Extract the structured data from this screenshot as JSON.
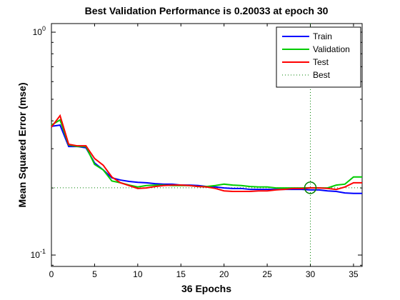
{
  "chart_data": {
    "type": "line",
    "title": "Best Validation Performance is 0.20033 at epoch 30",
    "x_label": "36 Epochs",
    "y_label": "Mean Squared Error  (mse)",
    "y_scale": "log",
    "xlim": [
      0,
      36
    ],
    "xticks": [
      0,
      5,
      10,
      15,
      20,
      25,
      30,
      35
    ],
    "ylim": [
      0.0889,
      1.093
    ],
    "yticks": [
      {
        "value": 0.1,
        "label": "10",
        "exponent": "-1"
      },
      {
        "value": 1,
        "label": "10",
        "exponent": "0"
      }
    ],
    "x": [
      0,
      1,
      2,
      3,
      4,
      5,
      6,
      7,
      8,
      9,
      10,
      11,
      12,
      13,
      14,
      15,
      16,
      17,
      18,
      19,
      20,
      21,
      22,
      23,
      24,
      25,
      26,
      27,
      28,
      29,
      30,
      31,
      32,
      33,
      34,
      35,
      36
    ],
    "series": [
      {
        "name": "Train",
        "color": "#0000ff",
        "values": [
          0.378,
          0.383,
          0.307,
          0.307,
          0.303,
          0.259,
          0.241,
          0.222,
          0.217,
          0.214,
          0.212,
          0.211,
          0.209,
          0.208,
          0.208,
          0.206,
          0.206,
          0.205,
          0.203,
          0.202,
          0.2,
          0.199,
          0.199,
          0.197,
          0.197,
          0.197,
          0.197,
          0.197,
          0.197,
          0.197,
          0.196,
          0.196,
          0.194,
          0.193,
          0.19,
          0.189,
          0.189
        ]
      },
      {
        "name": "Validation",
        "color": "#00cc00",
        "values": [
          0.383,
          0.404,
          0.312,
          0.307,
          0.307,
          0.255,
          0.241,
          0.215,
          0.211,
          0.206,
          0.202,
          0.205,
          0.206,
          0.206,
          0.205,
          0.205,
          0.205,
          0.203,
          0.203,
          0.205,
          0.208,
          0.206,
          0.205,
          0.203,
          0.202,
          0.202,
          0.2,
          0.2,
          0.2,
          0.2,
          0.20033,
          0.2,
          0.2,
          0.206,
          0.208,
          0.224,
          0.224
        ]
      },
      {
        "name": "Test",
        "color": "#ff0000",
        "values": [
          0.375,
          0.422,
          0.314,
          0.309,
          0.309,
          0.271,
          0.253,
          0.224,
          0.211,
          0.205,
          0.199,
          0.2,
          0.203,
          0.205,
          0.206,
          0.206,
          0.205,
          0.203,
          0.202,
          0.199,
          0.194,
          0.193,
          0.193,
          0.193,
          0.194,
          0.194,
          0.196,
          0.197,
          0.199,
          0.199,
          0.2,
          0.2,
          0.199,
          0.197,
          0.202,
          0.211,
          0.211
        ]
      }
    ],
    "best": {
      "name": "Best",
      "color": "#008000",
      "x": 30,
      "y": 0.20033
    },
    "grid": false,
    "legend": "top-right"
  }
}
